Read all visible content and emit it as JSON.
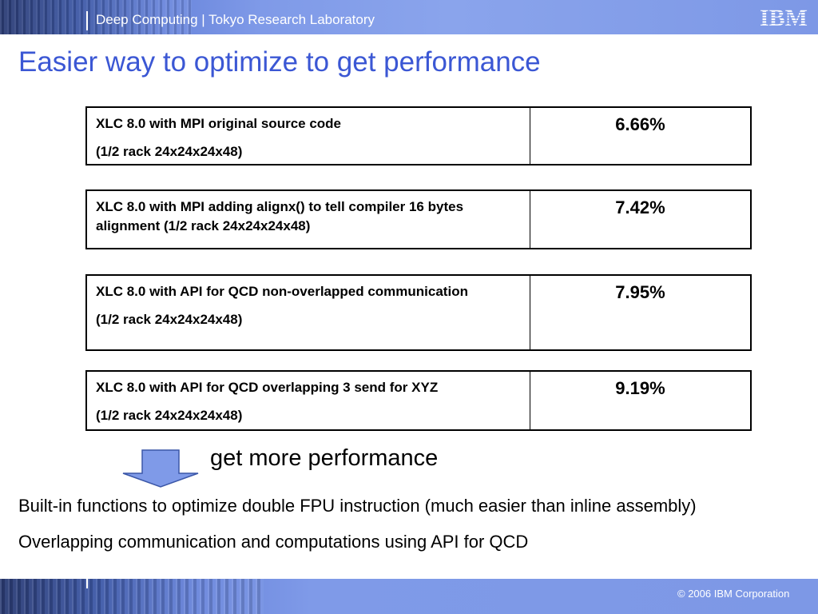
{
  "header": {
    "department": "Deep Computing | Tokyo Research Laboratory",
    "logo_text": "IBM"
  },
  "slide": {
    "title": "Easier way to optimize to get performance"
  },
  "results": [
    {
      "description": [
        "XLC 8.0 with MPI original source code",
        "(1/2 rack 24x24x24x48)"
      ],
      "value": "6.66%"
    },
    {
      "description": [
        "XLC 8.0 with MPI  adding alignx() to tell compiler 16 bytes alignment  (1/2 rack 24x24x24x48)"
      ],
      "value": "7.42%"
    },
    {
      "description": [
        "XLC 8.0 with API for QCD non-overlapped communication",
        "(1/2 rack 24x24x24x48)"
      ],
      "value": "7.95%"
    },
    {
      "description": [
        "XLC 8.0 with API for QCD overlapping 3 send for XYZ",
        "(1/2 rack 24x24x24x48)"
      ],
      "value": "9.19%"
    }
  ],
  "conclusion": {
    "caption": "get more performance",
    "bullets": [
      "Built-in functions to optimize double FPU instruction (much easier than inline assembly)",
      "Overlapping communication and computations using API for QCD"
    ]
  },
  "footer": {
    "copyright": "© 2006 IBM Corporation"
  },
  "colors": {
    "title": "#3b57d4",
    "band": "#7f9ae8",
    "arrow_fill": "#7f9ae8"
  }
}
